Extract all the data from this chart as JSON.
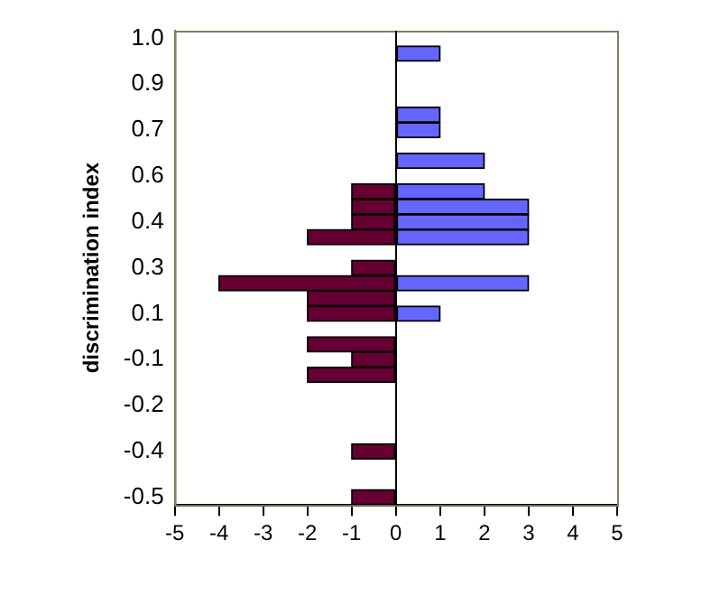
{
  "chart_data": {
    "type": "bar",
    "orientation": "horizontal",
    "ylabel": "discrimination index",
    "categories": [
      "1.0",
      null,
      null,
      "0.9",
      null,
      null,
      "0.7",
      null,
      null,
      "0.6",
      null,
      null,
      "0.4",
      null,
      null,
      "0.3",
      null,
      null,
      "0.1",
      null,
      null,
      "-0.1",
      null,
      null,
      "-0.2",
      null,
      null,
      "-0.4",
      null,
      null,
      "-0.5"
    ],
    "series": [
      {
        "color": "#660033",
        "values": [
          null,
          null,
          null,
          null,
          null,
          null,
          null,
          null,
          null,
          null,
          -1,
          -1,
          -1,
          -2,
          null,
          -1,
          -4,
          -2,
          -2,
          null,
          -2,
          -1,
          -2,
          null,
          null,
          null,
          null,
          -1,
          null,
          null,
          -1
        ]
      },
      {
        "color": "#6666ff",
        "values": [
          null,
          1,
          null,
          null,
          null,
          1,
          1,
          null,
          2,
          null,
          2,
          3,
          3,
          3,
          null,
          null,
          3,
          null,
          1,
          null,
          null,
          null,
          null,
          null,
          null,
          null,
          null,
          null,
          null,
          null,
          null
        ]
      }
    ],
    "xlim": [
      -5,
      5
    ],
    "xticks": [
      -5,
      -4,
      -3,
      -2,
      -1,
      0,
      1,
      2,
      3,
      4,
      5
    ],
    "legend": false
  }
}
